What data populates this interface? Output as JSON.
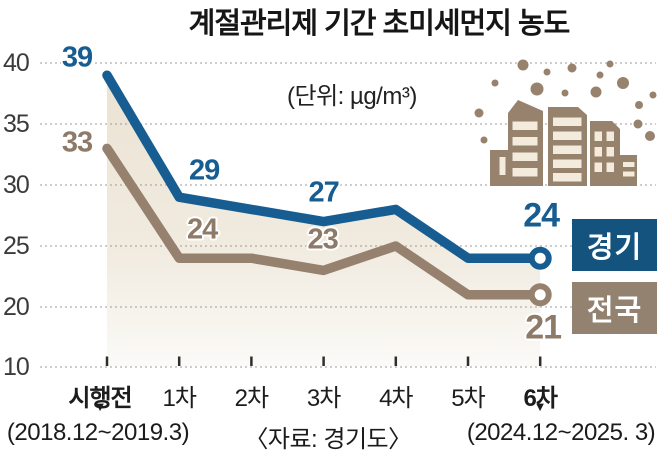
{
  "header": {
    "title": "계절관리제 기간 초미세먼지 농도"
  },
  "chart_data": {
    "type": "line",
    "unit_label": "(단위: µg/m³)",
    "categories": [
      {
        "label": "시행전",
        "bold": true
      },
      {
        "label": "1차",
        "bold": false
      },
      {
        "label": "2차",
        "bold": false
      },
      {
        "label": "3차",
        "bold": false
      },
      {
        "label": "4차",
        "bold": false
      },
      {
        "label": "5차",
        "bold": false
      },
      {
        "label": "6차",
        "bold": true
      }
    ],
    "series": [
      {
        "name": "경기",
        "line_color": "#175d92",
        "label_color": "#175d92",
        "box_color": "#15537f",
        "values": [
          39,
          29,
          28,
          27,
          28,
          24,
          24
        ],
        "end_marker": "open-circle"
      },
      {
        "name": "전국",
        "line_color": "#96816f",
        "label_color": "#8d7a69",
        "box_color": "#92826f",
        "values": [
          33,
          24,
          24,
          23,
          25,
          21,
          21
        ],
        "end_marker": "open-circle"
      }
    ],
    "point_labels": [
      {
        "series": 0,
        "cat": 0,
        "text": "39",
        "size": "normal"
      },
      {
        "series": 1,
        "cat": 0,
        "text": "33",
        "size": "normal"
      },
      {
        "series": 0,
        "cat": 1,
        "text": "29",
        "size": "normal"
      },
      {
        "series": 1,
        "cat": 1,
        "text": "24",
        "size": "normal"
      },
      {
        "series": 0,
        "cat": 3,
        "text": "27",
        "size": "normal"
      },
      {
        "series": 1,
        "cat": 3,
        "text": "23",
        "size": "normal"
      },
      {
        "series": 0,
        "cat": 6,
        "text": "24",
        "size": "large"
      },
      {
        "series": 1,
        "cat": 6,
        "text": "21",
        "size": "large"
      }
    ],
    "y_ticks": [
      40,
      35,
      30,
      25,
      20,
      10
    ],
    "y_axis_break": "between 20 and 10",
    "grid": "dotted horizontal",
    "area_fill_under": "경기"
  },
  "legend": [
    {
      "label": "경기"
    },
    {
      "label": "전국"
    }
  ],
  "footer": {
    "left_period": "(2018.12~2019.3)",
    "source": "〈자료: 경기도〉",
    "right_period": "(2024.12~2025. 3)",
    "arrow_glyph": "▼"
  },
  "colors": {
    "gyeonggi_blue": "#175d92",
    "national_brown": "#96816f",
    "area_beige": "#ebe3d3",
    "grid_gray": "#9b9b9b",
    "building_brown": "#97826e",
    "window_cream": "#f3ebdb"
  },
  "icons": {
    "decoration": "city-buildings-dust-icon",
    "series_end": "open-circle-marker",
    "period_pointer": "arrow-down-icon"
  }
}
